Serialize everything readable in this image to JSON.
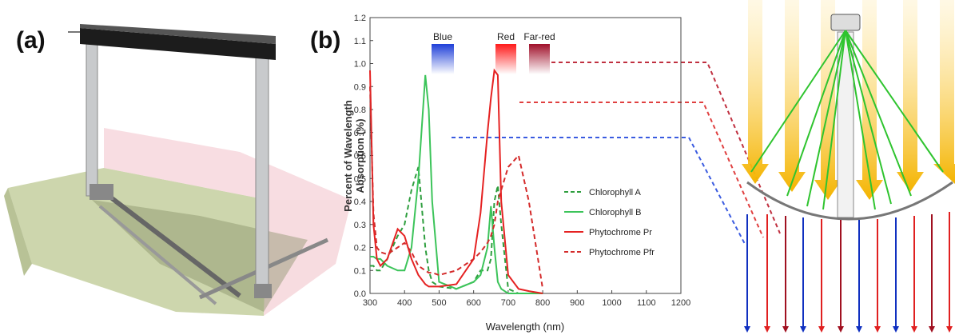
{
  "panel_labels": [
    "(a)",
    "(b)"
  ],
  "chart_data": {
    "type": "line",
    "ylabel": [
      "Percent of Wavelength",
      "Absorption (%)"
    ],
    "xlabel": "Wavelength (nm)",
    "annotations": [
      {
        "text": "Blue",
        "color": "#1f3fd8"
      },
      {
        "text": "Red",
        "color": "#ff1a1a"
      },
      {
        "text": "Far-red",
        "color": "#a0102a"
      }
    ],
    "x": [
      300,
      310,
      320,
      330,
      350,
      380,
      400,
      420,
      440,
      460,
      470,
      480,
      500,
      550,
      600,
      620,
      640,
      650,
      660,
      670,
      680,
      700,
      730,
      760,
      800
    ],
    "series": [
      {
        "name": "Chlorophyll A",
        "color": "#2e9e3e",
        "style": "dashed",
        "values": [
          0.12,
          0.12,
          0.1,
          0.1,
          0.15,
          0.25,
          0.3,
          0.45,
          0.55,
          0.2,
          0.1,
          0.05,
          0.03,
          0.02,
          0.05,
          0.1,
          0.1,
          0.15,
          0.4,
          0.47,
          0.3,
          0.02,
          0,
          0,
          0
        ]
      },
      {
        "name": "Chlorophyll B",
        "color": "#3cc45a",
        "style": "solid",
        "values": [
          0.16,
          0.16,
          0.15,
          0.15,
          0.12,
          0.1,
          0.1,
          0.2,
          0.5,
          0.95,
          0.8,
          0.4,
          0.05,
          0.02,
          0.05,
          0.08,
          0.2,
          0.38,
          0.2,
          0.05,
          0.02,
          0,
          0,
          0,
          0
        ]
      },
      {
        "name": "Phytochrome Pr",
        "color": "#e52222",
        "style": "solid",
        "values": [
          0.97,
          0.3,
          0.15,
          0.12,
          0.15,
          0.28,
          0.25,
          0.15,
          0.08,
          0.04,
          0.03,
          0.03,
          0.03,
          0.04,
          0.15,
          0.35,
          0.7,
          0.85,
          0.97,
          0.95,
          0.4,
          0.08,
          0.02,
          0.01,
          0
        ]
      },
      {
        "name": "Phytochrome Pfr",
        "color": "#d42a2a",
        "style": "dashed",
        "values": [
          0.9,
          0.35,
          0.2,
          0.18,
          0.17,
          0.2,
          0.22,
          0.18,
          0.12,
          0.1,
          0.09,
          0.09,
          0.08,
          0.1,
          0.15,
          0.18,
          0.22,
          0.25,
          0.3,
          0.4,
          0.45,
          0.55,
          0.6,
          0.4,
          0.02
        ]
      }
    ],
    "xlim": [
      300,
      1200
    ],
    "xticks": [
      300,
      400,
      500,
      600,
      700,
      800,
      900,
      1000,
      1100,
      1200
    ],
    "ylim": [
      0,
      1.2
    ],
    "yticks": [
      {
        "value": 0,
        "label": "0.0"
      },
      0.1,
      0.2,
      0.3,
      0.4,
      0.5,
      0.6,
      0.7,
      0.8,
      0.9,
      {
        "value": 1,
        "label": "1.0"
      },
      1.1,
      1.2
    ]
  }
}
